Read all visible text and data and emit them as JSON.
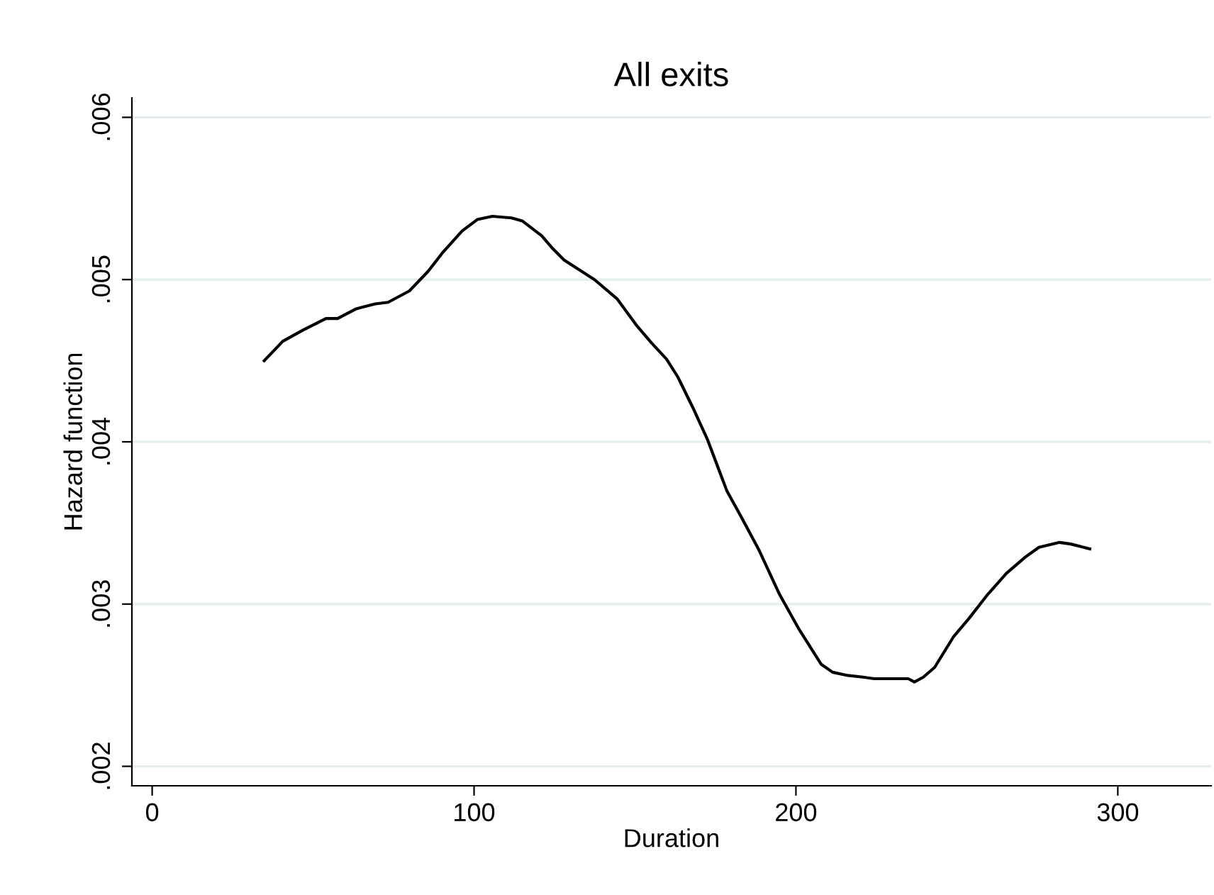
{
  "chart_data": {
    "type": "line",
    "title": "All exits",
    "xlabel": "Duration",
    "ylabel": "Hazard function",
    "x": [
      34.8,
      40.6,
      47.0,
      54.0,
      57.6,
      63.4,
      69.3,
      73.3,
      79.9,
      85.7,
      90.4,
      96.3,
      101.0,
      105.7,
      111.6,
      115.1,
      121.0,
      124.5,
      128.0,
      132.7,
      137.4,
      144.5,
      150.4,
      155.1,
      159.8,
      163.3,
      168.0,
      172.6,
      178.5,
      183.2,
      188.6,
      194.9,
      200.8,
      207.8,
      211.4,
      216.1,
      220.8,
      224.3,
      227.9,
      231.4,
      234.9,
      236.8,
      239.6,
      243.1,
      249.0,
      253.7,
      259.6,
      265.4,
      271.3,
      275.5,
      281.9,
      285.4,
      291.3
    ],
    "series": [
      {
        "color": "#000000",
        "values": [
          0.0045,
          0.00462,
          0.00469,
          0.00476,
          0.00476,
          0.00482,
          0.00485,
          0.00486,
          0.00493,
          0.00505,
          0.00517,
          0.0053,
          0.00537,
          0.00539,
          0.00538,
          0.00536,
          0.00527,
          0.00519,
          0.00512,
          0.00506,
          0.005,
          0.00488,
          0.00472,
          0.00461,
          0.00451,
          0.0044,
          0.00421,
          0.00401,
          0.0037,
          0.00353,
          0.00333,
          0.00306,
          0.00285,
          0.00263,
          0.00258,
          0.00256,
          0.00255,
          0.00254,
          0.00254,
          0.00254,
          0.00254,
          0.00252,
          0.00255,
          0.00261,
          0.0028,
          0.00291,
          0.00306,
          0.00319,
          0.00329,
          0.00335,
          0.00338,
          0.00337,
          0.00334
        ]
      }
    ],
    "xlim": [
      -6.3,
      329
    ],
    "ylim": [
      0.00188,
      0.00612
    ],
    "xticks": [
      0,
      100,
      200,
      300
    ],
    "yticks": [
      {
        "value": 0.002,
        "label": ".002"
      },
      {
        "value": 0.003,
        "label": ".003"
      },
      {
        "value": 0.004,
        "label": ".004"
      },
      {
        "value": 0.005,
        "label": ".005"
      },
      {
        "value": 0.006,
        "label": ".006"
      }
    ],
    "grid": "y",
    "marker": "none",
    "line_style": "solid",
    "legend": false
  }
}
